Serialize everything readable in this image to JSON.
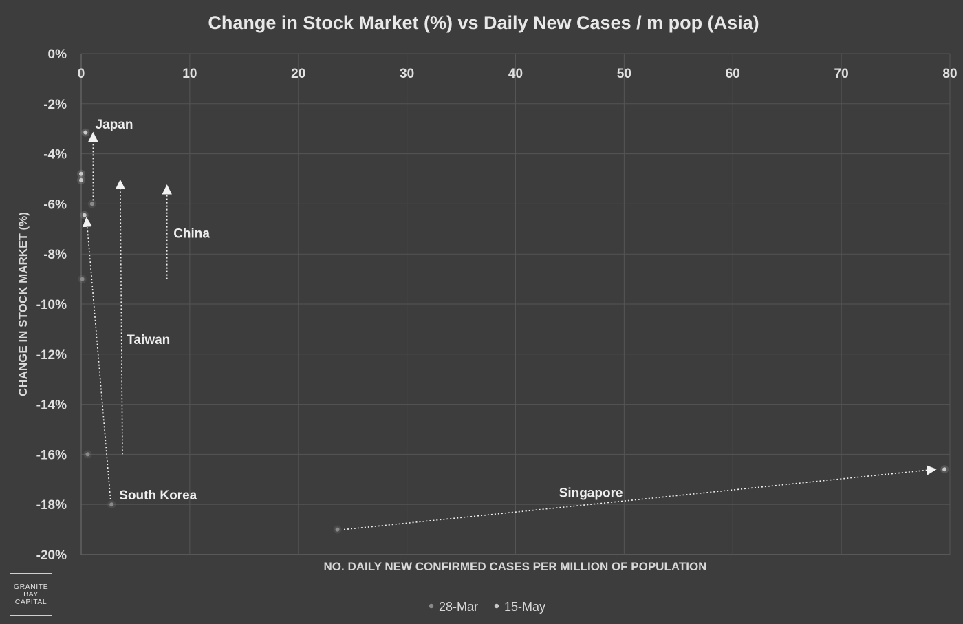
{
  "chart_data": {
    "type": "scatter",
    "title": "Change in Stock Market (%) vs Daily New Cases / m pop (Asia)",
    "xlabel": "NO. DAILY NEW CONFIRMED CASES PER MILLION OF POPULATION",
    "ylabel": "CHANGE IN STOCK MARKET (%)",
    "xlim": [
      0,
      80
    ],
    "ylim": [
      -20,
      0
    ],
    "x_ticks": [
      "0",
      "10",
      "20",
      "30",
      "40",
      "50",
      "60",
      "70",
      "80"
    ],
    "y_ticks": [
      "0%",
      "-2%",
      "-4%",
      "-6%",
      "-8%",
      "-10%",
      "-12%",
      "-14%",
      "-16%",
      "-18%",
      "-20%"
    ],
    "legend": {
      "position": "bottom",
      "entries": [
        "28-Mar",
        "15-May"
      ]
    },
    "series": [
      {
        "name": "28-Mar",
        "color": "#8a8a8a",
        "points": [
          {
            "x": 1.0,
            "y": -6.0
          },
          {
            "x": 0.6,
            "y": -16.0
          },
          {
            "x": 2.8,
            "y": -18.0
          },
          {
            "x": 0.1,
            "y": -9.0
          },
          {
            "x": 23.6,
            "y": -19.0
          }
        ]
      },
      {
        "name": "15-May",
        "color": "#c8c8c8",
        "points": [
          {
            "x": 0.4,
            "y": -3.15
          },
          {
            "x": 0.0,
            "y": -4.8
          },
          {
            "x": 0.0,
            "y": -5.05
          },
          {
            "x": 0.3,
            "y": -6.45
          },
          {
            "x": 79.5,
            "y": -16.6
          }
        ]
      }
    ],
    "arrows": [
      {
        "label": "Japan",
        "from": {
          "x": 1.1,
          "y": -6.0
        },
        "to": {
          "x": 1.1,
          "y": -3.2
        }
      },
      {
        "label": "Taiwan",
        "from": {
          "x": 3.8,
          "y": -16.0
        },
        "to": {
          "x": 3.6,
          "y": -5.1
        }
      },
      {
        "label": "China",
        "from": {
          "x": 7.9,
          "y": -9.0
        },
        "to": {
          "x": 7.9,
          "y": -5.3
        }
      },
      {
        "label": "South Korea",
        "from": {
          "x": 2.7,
          "y": -17.8
        },
        "to": {
          "x": 0.5,
          "y": -6.6
        }
      },
      {
        "label": "Singapore",
        "from": {
          "x": 24.2,
          "y": -19.0
        },
        "to": {
          "x": 78.6,
          "y": -16.6
        }
      }
    ],
    "labels": [
      {
        "text": "Japan",
        "x": 1.3,
        "y": -3.0
      },
      {
        "text": "China",
        "x": 8.5,
        "y": -7.35
      },
      {
        "text": "Taiwan",
        "x": 4.2,
        "y": -11.6
      },
      {
        "text": "South Korea",
        "x": 3.5,
        "y": -17.8
      },
      {
        "text": "Singapore",
        "x": 44.0,
        "y": -17.7
      }
    ],
    "grid": true
  },
  "logo": {
    "lines": [
      "GRANITE",
      "BAY",
      "CAPITAL"
    ]
  }
}
